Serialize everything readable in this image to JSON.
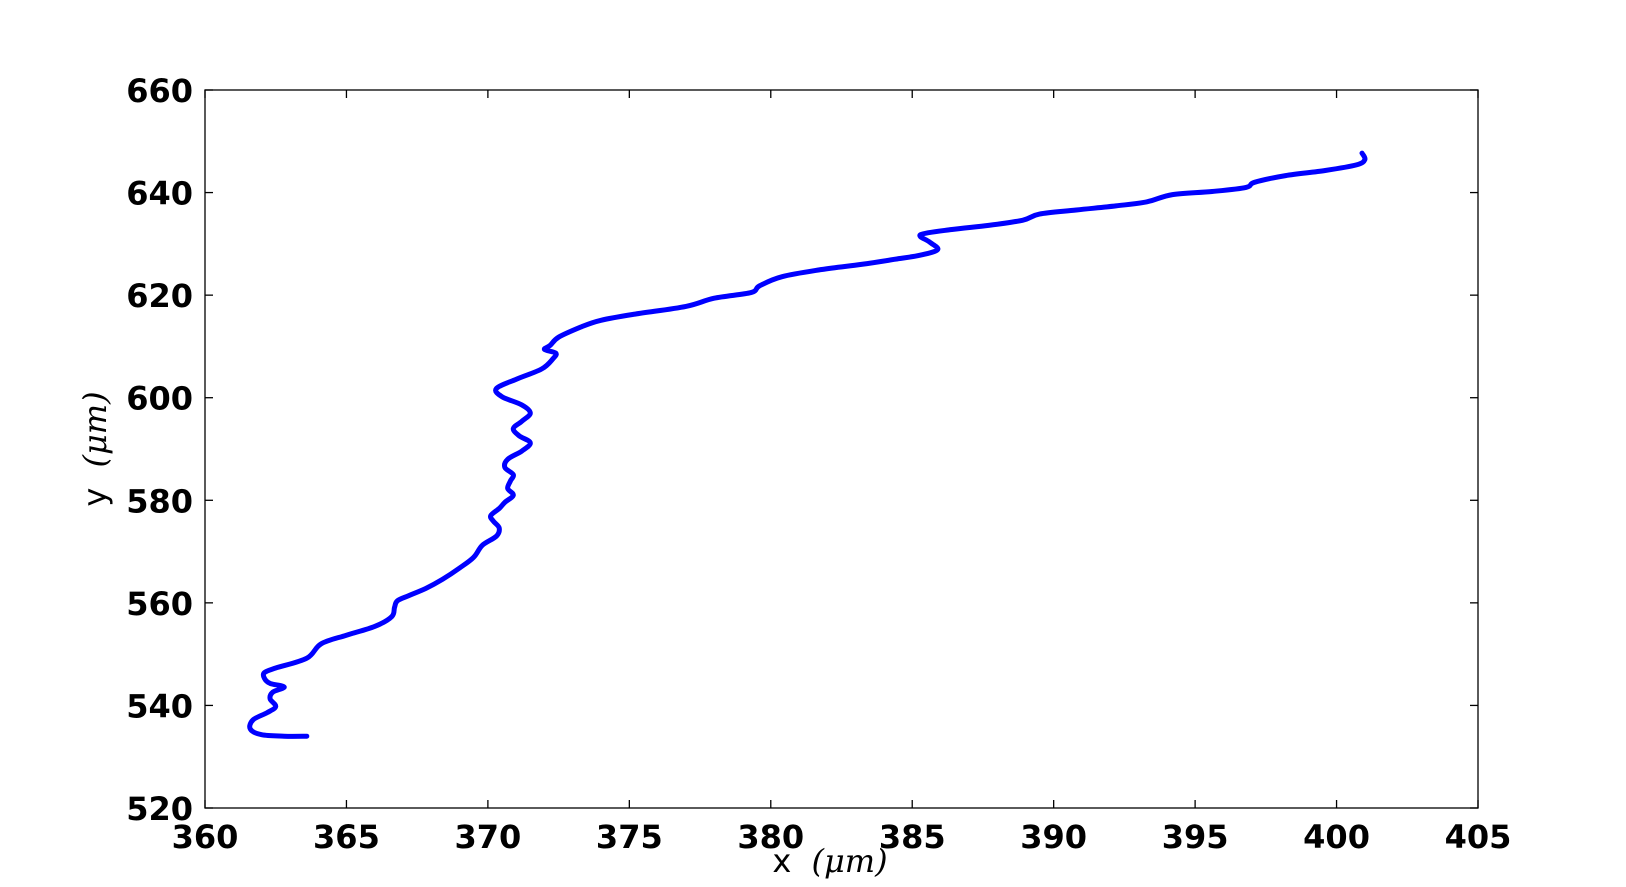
{
  "chart_data": {
    "type": "line",
    "xlabel": "x",
    "xlabel_unit": "(μm)",
    "ylabel": "y",
    "ylabel_unit": "(μm)",
    "xlim": [
      360,
      405
    ],
    "ylim": [
      520,
      660
    ],
    "xticks": [
      360,
      365,
      370,
      375,
      380,
      385,
      390,
      395,
      400,
      405
    ],
    "yticks": [
      520,
      540,
      560,
      580,
      600,
      620,
      640,
      660
    ],
    "grid": false,
    "legend": "none",
    "line_color": "#0000ff",
    "series": [
      {
        "points": [
          [
            363.6,
            534.0
          ],
          [
            362.8,
            534.0
          ],
          [
            362.0,
            534.3
          ],
          [
            361.6,
            535.4
          ],
          [
            361.7,
            537.2
          ],
          [
            362.2,
            538.6
          ],
          [
            362.5,
            539.8
          ],
          [
            362.3,
            541.3
          ],
          [
            362.4,
            542.6
          ],
          [
            362.8,
            543.6
          ],
          [
            362.3,
            544.3
          ],
          [
            362.1,
            545.3
          ],
          [
            362.1,
            546.4
          ],
          [
            362.5,
            547.3
          ],
          [
            363.6,
            549.2
          ],
          [
            364.1,
            552.0
          ],
          [
            365.0,
            553.7
          ],
          [
            366.0,
            555.4
          ],
          [
            366.6,
            557.3
          ],
          [
            366.7,
            559.1
          ],
          [
            366.8,
            560.4
          ],
          [
            367.2,
            561.4
          ],
          [
            367.8,
            562.8
          ],
          [
            368.4,
            564.6
          ],
          [
            369.0,
            566.8
          ],
          [
            369.5,
            568.9
          ],
          [
            369.8,
            571.2
          ],
          [
            370.3,
            573.0
          ],
          [
            370.4,
            574.6
          ],
          [
            370.2,
            575.9
          ],
          [
            370.1,
            577.0
          ],
          [
            370.4,
            578.4
          ],
          [
            370.6,
            579.6
          ],
          [
            370.9,
            581.0
          ],
          [
            370.7,
            582.3
          ],
          [
            370.8,
            583.8
          ],
          [
            370.9,
            585.0
          ],
          [
            370.6,
            586.4
          ],
          [
            370.7,
            588.0
          ],
          [
            371.2,
            589.6
          ],
          [
            371.5,
            591.2
          ],
          [
            371.1,
            592.6
          ],
          [
            370.9,
            594.0
          ],
          [
            371.2,
            595.4
          ],
          [
            371.5,
            597.0
          ],
          [
            371.2,
            598.6
          ],
          [
            370.5,
            600.2
          ],
          [
            370.3,
            601.8
          ],
          [
            371.0,
            603.6
          ],
          [
            371.9,
            605.6
          ],
          [
            372.3,
            607.6
          ],
          [
            372.4,
            608.7
          ],
          [
            372.0,
            609.4
          ],
          [
            372.2,
            610.2
          ],
          [
            372.5,
            611.8
          ],
          [
            373.3,
            613.8
          ],
          [
            374.0,
            615.1
          ],
          [
            375.2,
            616.3
          ],
          [
            377.0,
            617.8
          ],
          [
            378.0,
            619.4
          ],
          [
            379.3,
            620.5
          ],
          [
            379.6,
            621.8
          ],
          [
            380.4,
            623.6
          ],
          [
            381.8,
            625.0
          ],
          [
            383.2,
            626.0
          ],
          [
            384.4,
            627.0
          ],
          [
            385.3,
            627.8
          ],
          [
            385.9,
            628.9
          ],
          [
            385.6,
            630.4
          ],
          [
            385.3,
            631.8
          ],
          [
            386.4,
            632.8
          ],
          [
            387.7,
            633.6
          ],
          [
            388.9,
            634.6
          ],
          [
            389.5,
            635.8
          ],
          [
            390.8,
            636.6
          ],
          [
            392.2,
            637.4
          ],
          [
            393.3,
            638.2
          ],
          [
            394.2,
            639.6
          ],
          [
            395.6,
            640.2
          ],
          [
            396.8,
            641.0
          ],
          [
            397.1,
            642.0
          ],
          [
            398.2,
            643.3
          ],
          [
            399.6,
            644.3
          ],
          [
            400.7,
            645.4
          ],
          [
            401.0,
            646.4
          ],
          [
            400.9,
            647.7
          ]
        ]
      }
    ]
  }
}
